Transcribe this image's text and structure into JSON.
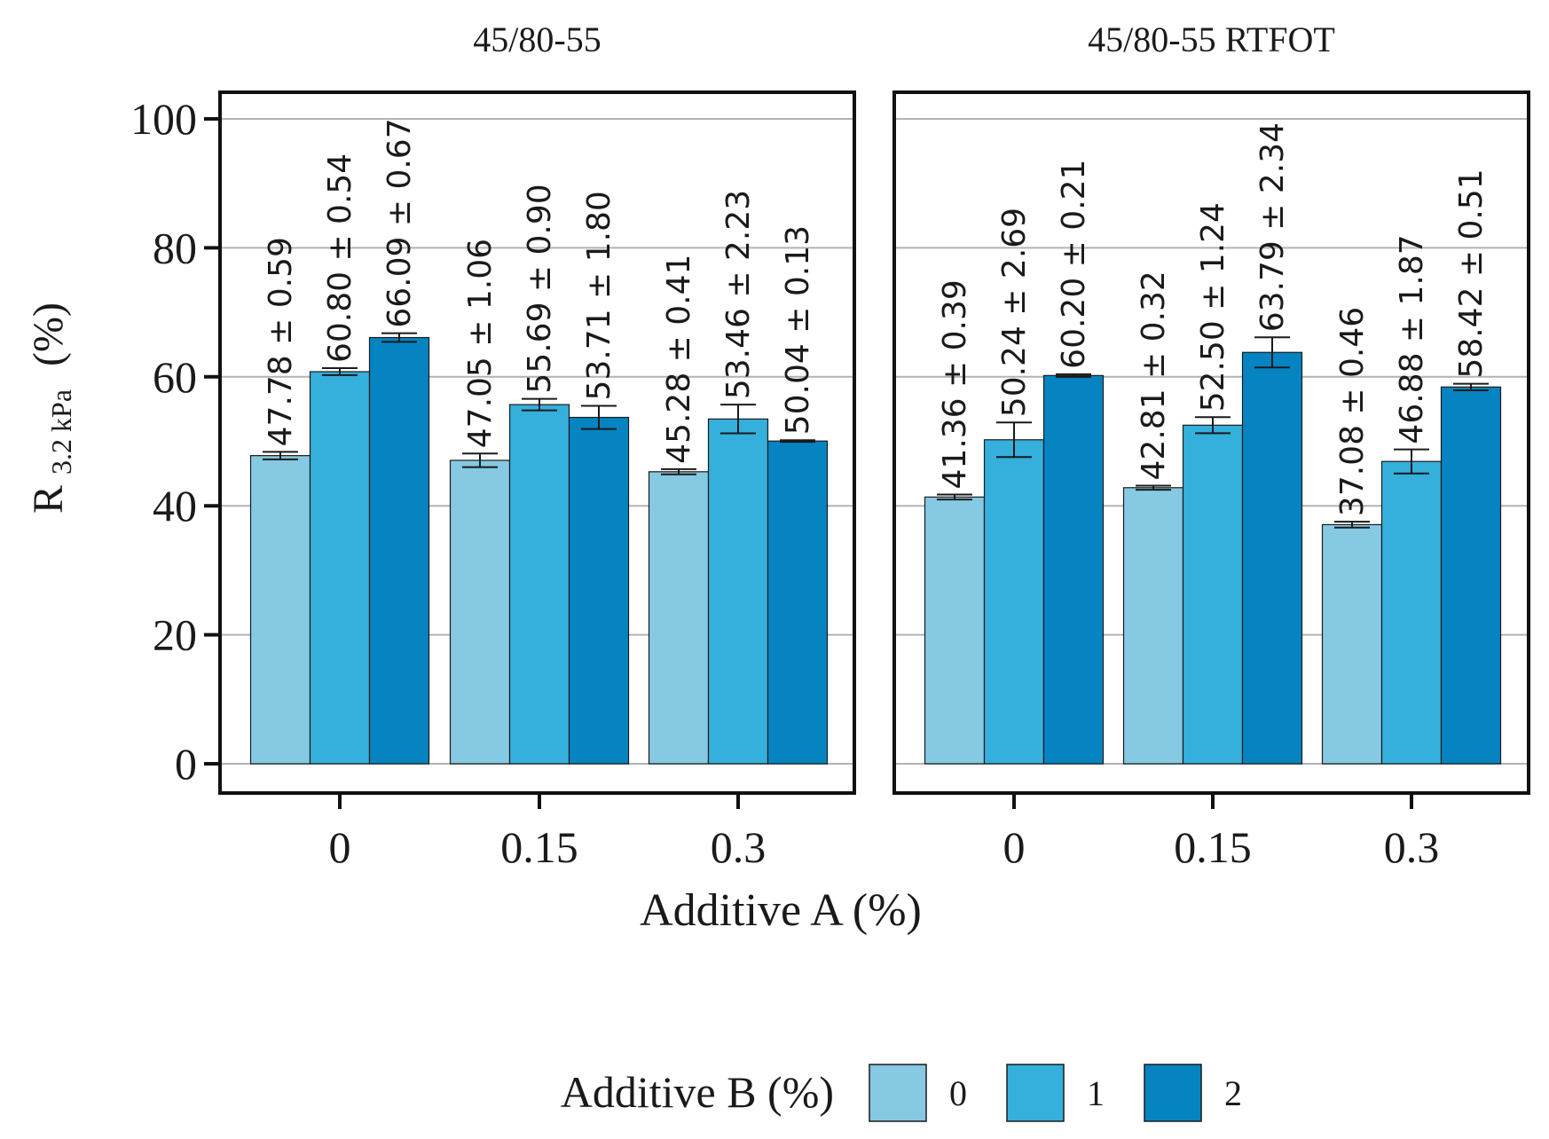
{
  "chart_data": {
    "type": "bar",
    "ylabel_main": "R",
    "ylabel_sub": "3.2 kPa",
    "ylabel_unit": "(%)",
    "xlabel": "Additive A (%)",
    "ylim": [
      0,
      100
    ],
    "yticks": [
      "0",
      "20",
      "40",
      "60",
      "80",
      "100"
    ],
    "grid": true,
    "categories": [
      "0",
      "0.15",
      "0.3"
    ],
    "legend": {
      "title": "Additive B (%)",
      "position": "bottom",
      "entries": [
        {
          "label": "0",
          "color": "#86c9e3"
        },
        {
          "label": "1",
          "color": "#35afdc"
        },
        {
          "label": "2",
          "color": "#0584c1"
        }
      ]
    },
    "panels": [
      {
        "title": "45/80-55",
        "series": [
          {
            "values": [
              47.78,
              47.05,
              45.28
            ],
            "errors": [
              0.59,
              1.06,
              0.41
            ],
            "labels": [
              "47.78 ± 0.59",
              "47.05 ± 1.06",
              "45.28 ± 0.41"
            ]
          },
          {
            "values": [
              60.8,
              55.69,
              53.46
            ],
            "errors": [
              0.54,
              0.9,
              2.23
            ],
            "labels": [
              "60.80 ± 0.54",
              "55.69 ± 0.90",
              "53.46 ± 2.23"
            ]
          },
          {
            "values": [
              66.09,
              53.71,
              50.04
            ],
            "errors": [
              0.67,
              1.8,
              0.13
            ],
            "labels": [
              "66.09 ± 0.67",
              "53.71 ± 1.80",
              "50.04 ± 0.13"
            ]
          }
        ]
      },
      {
        "title": "45/80-55 RTFOT",
        "series": [
          {
            "values": [
              41.36,
              42.81,
              37.08
            ],
            "errors": [
              0.39,
              0.32,
              0.46
            ],
            "labels": [
              "41.36 ± 0.39",
              "42.81 ± 0.32",
              "37.08 ± 0.46"
            ]
          },
          {
            "values": [
              50.24,
              52.5,
              46.88
            ],
            "errors": [
              2.69,
              1.24,
              1.87
            ],
            "labels": [
              "50.24 ± 2.69",
              "52.50 ± 1.24",
              "46.88 ± 1.87"
            ]
          },
          {
            "values": [
              60.2,
              63.79,
              58.42
            ],
            "errors": [
              0.21,
              2.34,
              0.51
            ],
            "labels": [
              "60.20 ± 0.21",
              "63.79 ± 2.34",
              "58.42 ± 0.51"
            ]
          }
        ]
      }
    ]
  }
}
